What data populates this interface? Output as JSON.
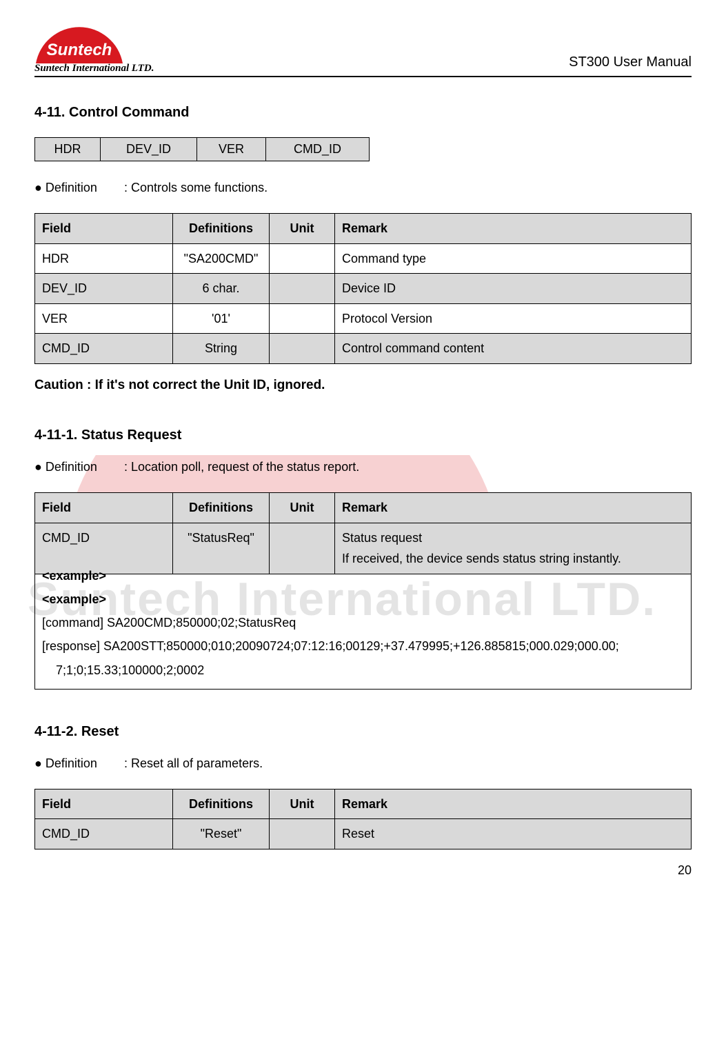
{
  "header": {
    "logo_company": "Suntech International LTD.",
    "doc_title": "ST300 User Manual",
    "logo_word": "Suntech",
    "logo_color": "#d71920"
  },
  "watermark": {
    "word": "Suntech",
    "company": "Suntech International LTD.",
    "color": "#d71920"
  },
  "section411": {
    "heading": "4-11. Control Command",
    "mini_cells": [
      "HDR",
      "DEV_ID",
      "VER",
      "CMD_ID"
    ],
    "mini_widths": [
      95,
      140,
      100,
      150
    ],
    "definition_label": "● Definition",
    "definition_text": ": Controls some functions.",
    "table_headers": [
      "Field",
      "Definitions",
      "Unit",
      "Remark"
    ],
    "rows": [
      {
        "field": "HDR",
        "def": "\"SA200CMD\"",
        "unit": "",
        "remark": "Command type",
        "shade": false
      },
      {
        "field": "DEV_ID",
        "def": "6 char.",
        "unit": "",
        "remark": "Device ID",
        "shade": true
      },
      {
        "field": "VER",
        "def": "'01'",
        "unit": "",
        "remark": "Protocol Version",
        "shade": false
      },
      {
        "field": "CMD_ID",
        "def": "String",
        "unit": "",
        "remark": "Control command content",
        "shade": true
      }
    ],
    "caution": "Caution : If it's not correct the Unit ID, ignored."
  },
  "section4111": {
    "heading": "4-11-1. Status Request",
    "definition_label": "● Definition",
    "definition_text": ": Location poll, request of the status report.",
    "table_headers": [
      "Field",
      "Definitions",
      "Unit",
      "Remark"
    ],
    "rows": [
      {
        "field": "CMD_ID",
        "def": "\"StatusReq\"",
        "unit": "",
        "remark": "Status request\nIf received, the device sends status string instantly.",
        "shade": true
      }
    ],
    "example_h1": "<example>",
    "example_h2": "<example>",
    "example_lines": [
      "[command] SA200CMD;850000;02;StatusReq",
      "[response] SA200STT;850000;010;20090724;07:12:16;00129;+37.479995;+126.885815;000.029;000.00;",
      "    7;1;0;15.33;100000;2;0002"
    ]
  },
  "section4112": {
    "heading": "4-11-2. Reset",
    "definition_label": "● Definition",
    "definition_text": ": Reset all of parameters.",
    "table_headers": [
      "Field",
      "Definitions",
      "Unit",
      "Remark"
    ],
    "rows": [
      {
        "field": "CMD_ID",
        "def": "\"Reset\"",
        "unit": "",
        "remark": "Reset",
        "shade": true
      }
    ]
  },
  "page_number": "20"
}
